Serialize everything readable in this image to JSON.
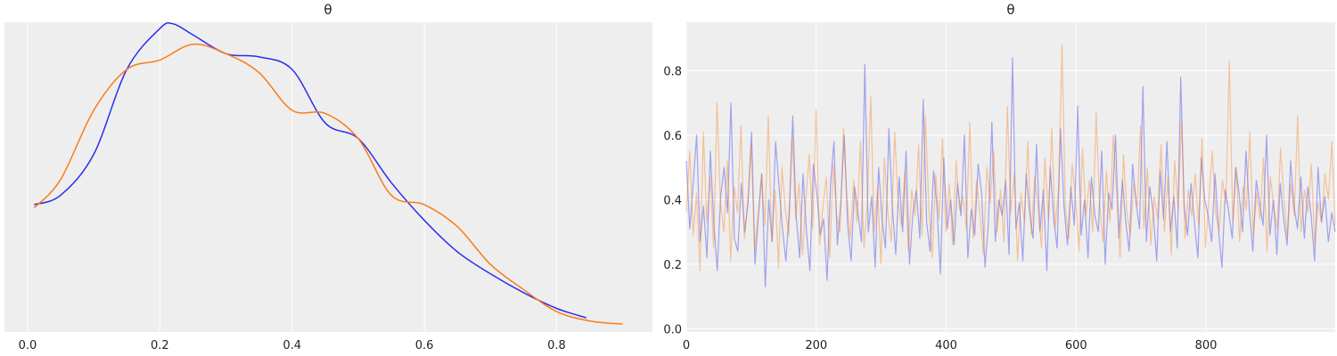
{
  "colors": {
    "background": "#ffffff",
    "panel": "#eeeeee",
    "grid": "#ffffff",
    "chain1": "#2a2eec",
    "chain2": "#fa7c17",
    "text": "#222222"
  },
  "chart_data": [
    {
      "type": "line",
      "title": "θ",
      "xlabel": "",
      "ylabel": "",
      "xlim": [
        -0.035,
        0.945
      ],
      "ylim": [
        0.015,
        1.0
      ],
      "x_ticks": [
        0.0,
        0.2,
        0.4,
        0.6,
        0.8
      ],
      "x_tick_labels": [
        "0.0",
        "0.2",
        "0.4",
        "0.6",
        "0.8"
      ],
      "y_ticks": [],
      "grid": "vertical",
      "series": [
        {
          "color": "#2a2eec",
          "alpha": 1.0,
          "x": [
            0.01,
            0.05,
            0.1,
            0.15,
            0.2,
            0.22,
            0.25,
            0.3,
            0.35,
            0.4,
            0.45,
            0.5,
            0.55,
            0.6,
            0.65,
            0.7,
            0.75,
            0.8,
            0.845
          ],
          "y": [
            0.42,
            0.45,
            0.58,
            0.85,
            0.98,
            0.995,
            0.96,
            0.9,
            0.89,
            0.85,
            0.68,
            0.63,
            0.49,
            0.37,
            0.27,
            0.2,
            0.14,
            0.09,
            0.06
          ]
        },
        {
          "color": "#fa7c17",
          "alpha": 1.0,
          "x": [
            0.01,
            0.05,
            0.1,
            0.15,
            0.2,
            0.25,
            0.3,
            0.35,
            0.4,
            0.45,
            0.5,
            0.55,
            0.6,
            0.65,
            0.7,
            0.75,
            0.8,
            0.85,
            0.9
          ],
          "y": [
            0.41,
            0.5,
            0.72,
            0.85,
            0.88,
            0.93,
            0.9,
            0.84,
            0.72,
            0.71,
            0.63,
            0.45,
            0.42,
            0.35,
            0.23,
            0.15,
            0.08,
            0.05,
            0.04
          ]
        }
      ]
    },
    {
      "type": "line",
      "title": "θ",
      "xlabel": "",
      "ylabel": "",
      "xlim": [
        0,
        999
      ],
      "ylim": [
        -0.01,
        0.95
      ],
      "x_ticks": [
        0,
        200,
        400,
        600,
        800
      ],
      "x_tick_labels": [
        "0",
        "200",
        "400",
        "600",
        "800"
      ],
      "y_ticks": [
        0.0,
        0.2,
        0.4,
        0.6,
        0.8
      ],
      "y_tick_labels": [
        "0.0",
        "0.2",
        "0.4",
        "0.6",
        "0.8"
      ],
      "grid": "both",
      "n_draws": 1000,
      "series": [
        {
          "color": "#2a2eec",
          "alpha": 0.4,
          "x_start": 0,
          "x_step": 1,
          "y": [
            0.52,
            0.31,
            0.45,
            0.6,
            0.27,
            0.38,
            0.22,
            0.55,
            0.33,
            0.18,
            0.41,
            0.5,
            0.36,
            0.7,
            0.28,
            0.24,
            0.45,
            0.3,
            0.39,
            0.61,
            0.2,
            0.35,
            0.48,
            0.13,
            0.4,
            0.27,
            0.58,
            0.44,
            0.31,
            0.21,
            0.37,
            0.66,
            0.35,
            0.22,
            0.48,
            0.3,
            0.18,
            0.51,
            0.42,
            0.29,
            0.34,
            0.15,
            0.45,
            0.58,
            0.26,
            0.39,
            0.6,
            0.32,
            0.21,
            0.44,
            0.36,
            0.27,
            0.82,
            0.3,
            0.41,
            0.19,
            0.5,
            0.34,
            0.25,
            0.62,
            0.38,
            0.23,
            0.47,
            0.3,
            0.55,
            0.2,
            0.36,
            0.43,
            0.28,
            0.71,
            0.33,
            0.24,
            0.49,
            0.38,
            0.17,
            0.53,
            0.31,
            0.4,
            0.26,
            0.45,
            0.35,
            0.6,
            0.22,
            0.37,
            0.29,
            0.51,
            0.42,
            0.19,
            0.33,
            0.64,
            0.27,
            0.4,
            0.35,
            0.46,
            0.23,
            0.84,
            0.31,
            0.39,
            0.21,
            0.48,
            0.36,
            0.28,
            0.57,
            0.3,
            0.43,
            0.18,
            0.5,
            0.34,
            0.25,
            0.62,
            0.38,
            0.26,
            0.44,
            0.32,
            0.69,
            0.29,
            0.4,
            0.22,
            0.47,
            0.35,
            0.3,
            0.55,
            0.2,
            0.42,
            0.37,
            0.6,
            0.28,
            0.46,
            0.33,
            0.24,
            0.51,
            0.39,
            0.31,
            0.75,
            0.27,
            0.44,
            0.36,
            0.21,
            0.49,
            0.34,
            0.58,
            0.3,
            0.41,
            0.25,
            0.78,
            0.38,
            0.29,
            0.45,
            0.33,
            0.22,
            0.53,
            0.4,
            0.35,
            0.27,
            0.48,
            0.31,
            0.19,
            0.43,
            0.36,
            0.28,
            0.5,
            0.42,
            0.3,
            0.55,
            0.37,
            0.24,
            0.46,
            0.39,
            0.32,
            0.6,
            0.29,
            0.4,
            0.23,
            0.45,
            0.34,
            0.26,
            0.52,
            0.38,
            0.31,
            0.47,
            0.28,
            0.44,
            0.35,
            0.21,
            0.5,
            0.33,
            0.41,
            0.27,
            0.36,
            0.3
          ]
        },
        {
          "color": "#fa7c17",
          "alpha": 0.4,
          "x_start": 0,
          "x_step": 1,
          "y": [
            0.36,
            0.55,
            0.29,
            0.42,
            0.18,
            0.61,
            0.33,
            0.47,
            0.25,
            0.7,
            0.39,
            0.3,
            0.52,
            0.21,
            0.44,
            0.36,
            0.63,
            0.28,
            0.4,
            0.57,
            0.24,
            0.35,
            0.48,
            0.32,
            0.66,
            0.27,
            0.43,
            0.19,
            0.5,
            0.37,
            0.29,
            0.6,
            0.34,
            0.45,
            0.23,
            0.4,
            0.54,
            0.31,
            0.68,
            0.26,
            0.38,
            0.47,
            0.22,
            0.51,
            0.35,
            0.3,
            0.62,
            0.41,
            0.28,
            0.46,
            0.33,
            0.58,
            0.25,
            0.39,
            0.72,
            0.3,
            0.44,
            0.2,
            0.53,
            0.36,
            0.27,
            0.61,
            0.4,
            0.32,
            0.49,
            0.24,
            0.43,
            0.35,
            0.57,
            0.29,
            0.66,
            0.38,
            0.22,
            0.48,
            0.34,
            0.59,
            0.3,
            0.45,
            0.26,
            0.52,
            0.37,
            0.41,
            0.31,
            0.64,
            0.28,
            0.46,
            0.35,
            0.23,
            0.5,
            0.39,
            0.55,
            0.3,
            0.43,
            0.27,
            0.69,
            0.36,
            0.48,
            0.21,
            0.42,
            0.33,
            0.58,
            0.29,
            0.47,
            0.38,
            0.25,
            0.53,
            0.34,
            0.62,
            0.31,
            0.44,
            0.88,
            0.37,
            0.28,
            0.51,
            0.4,
            0.24,
            0.56,
            0.35,
            0.46,
            0.3,
            0.67,
            0.39,
            0.27,
            0.49,
            0.33,
            0.6,
            0.42,
            0.22,
            0.54,
            0.36,
            0.29,
            0.45,
            0.38,
            0.63,
            0.31,
            0.5,
            0.26,
            0.41,
            0.34,
            0.57,
            0.3,
            0.47,
            0.23,
            0.52,
            0.37,
            0.65,
            0.28,
            0.43,
            0.35,
            0.48,
            0.32,
            0.59,
            0.25,
            0.4,
            0.55,
            0.36,
            0.3,
            0.46,
            0.39,
            0.83,
            0.33,
            0.5,
            0.27,
            0.44,
            0.37,
            0.61,
            0.29,
            0.42,
            0.34,
            0.53,
            0.24,
            0.47,
            0.38,
            0.31,
            0.56,
            0.4,
            0.28,
            0.45,
            0.35,
            0.66,
            0.3,
            0.43,
            0.36,
            0.51,
            0.26,
            0.39,
            0.33,
            0.48,
            0.4,
            0.58,
            0.32
          ]
        }
      ]
    }
  ]
}
